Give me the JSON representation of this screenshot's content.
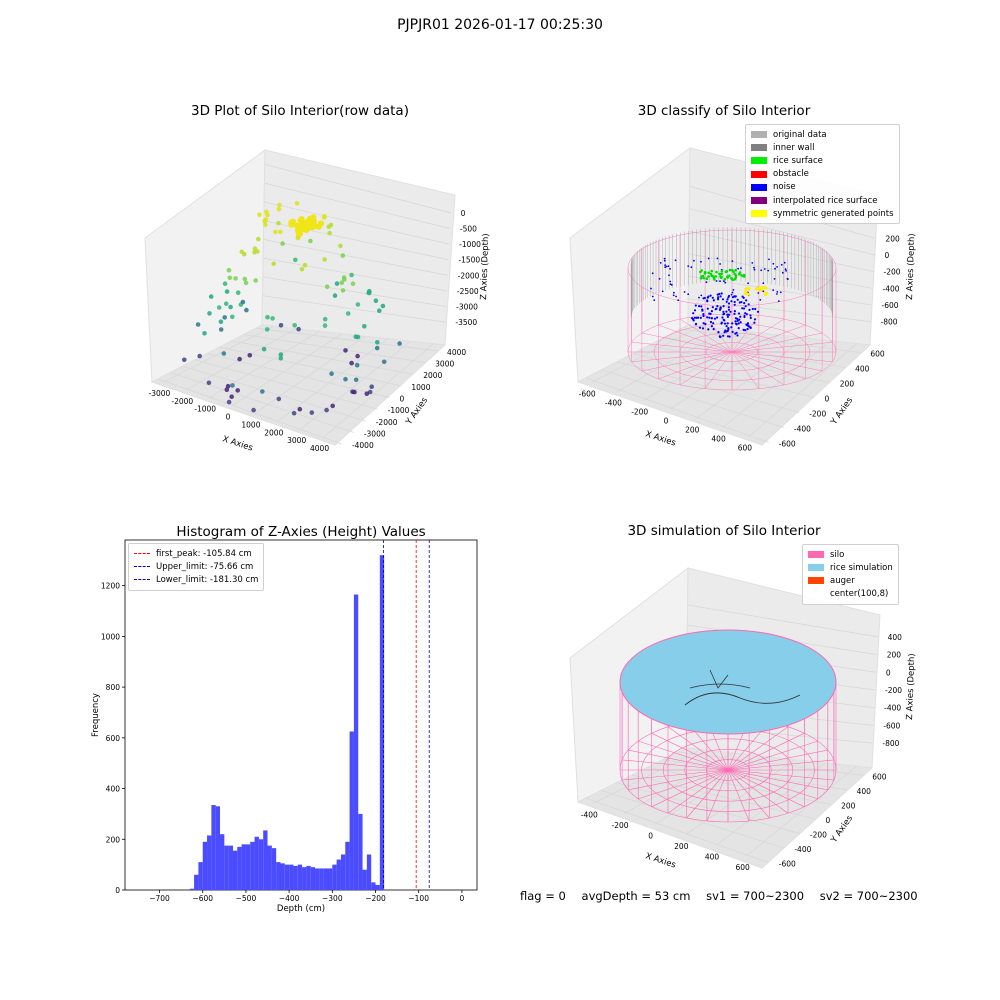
{
  "suptitle": "PJPJR01 2026-01-17 00:25:30",
  "panel1": {
    "title": "3D Plot of Silo Interior(row data)",
    "xlabel": "X Axies",
    "ylabel": "Y Axies",
    "zlabel": "Z Axies (Depth)",
    "xticks": [
      "-3000",
      "-2000",
      "-1000",
      "0",
      "1000",
      "2000",
      "3000",
      "4000"
    ],
    "yticks": [
      "-4000",
      "-3000",
      "-2000",
      "-1000",
      "0",
      "1000",
      "2000",
      "3000",
      "4000"
    ],
    "zticks": [
      "0",
      "-500",
      "-1000",
      "-1500",
      "-2000",
      "-2500",
      "-3000",
      "-3500"
    ]
  },
  "panel2": {
    "title": "3D classify of Silo Interior",
    "xlabel": "X Axies",
    "ylabel": "Y Axies",
    "zlabel": "Z Axies (Depth)",
    "xticks": [
      "-600",
      "-400",
      "-200",
      "0",
      "200",
      "400",
      "600"
    ],
    "yticks": [
      "-600",
      "-400",
      "-200",
      "0",
      "200",
      "400",
      "600"
    ],
    "zticks": [
      "200",
      "0",
      "-200",
      "-400",
      "-600",
      "-800"
    ],
    "legend": [
      {
        "label": "original data",
        "color": "#b0b0b0"
      },
      {
        "label": "inner wall",
        "color": "#808080"
      },
      {
        "label": "rice surface",
        "color": "#00ee00"
      },
      {
        "label": "obstacle",
        "color": "#ff0000"
      },
      {
        "label": "noise",
        "color": "#0000ff"
      },
      {
        "label": "interpolated rice surface",
        "color": "#800080"
      },
      {
        "label": "symmetric generated points",
        "color": "#ffff00"
      }
    ]
  },
  "panel4": {
    "title": "3D simulation of Silo Interior",
    "xlabel": "X Axies",
    "ylabel": "Y Axies",
    "zlabel": "Z Axies (Depth)",
    "xticks": [
      "-400",
      "-200",
      "0",
      "200",
      "400",
      "600"
    ],
    "yticks": [
      "-600",
      "-400",
      "-200",
      "0",
      "200",
      "400",
      "600"
    ],
    "zticks": [
      "400",
      "200",
      "0",
      "-200",
      "-400",
      "-600",
      "-800"
    ],
    "legend": [
      {
        "label": "silo",
        "color": "#ff69b4"
      },
      {
        "label": "rice simulation",
        "color": "#87ceeb"
      },
      {
        "label": "auger",
        "color": "#ff4500"
      },
      {
        "label": "center(100,8)",
        "color": "#ffffff"
      }
    ]
  },
  "status": {
    "flag": "flag = 0",
    "avg_depth": "avgDepth = 53 cm",
    "sv1": "sv1 = 700~2300",
    "sv2": "sv2 = 700~2300"
  },
  "chart_data": [
    {
      "type": "bar",
      "title": "Histogram of Z-Axies (Height) Values",
      "xlabel": "Depth (cm)",
      "ylabel": "Frequency",
      "xlim": [
        -780,
        35
      ],
      "ylim": [
        0,
        1380
      ],
      "bin_width": 10,
      "bin_start": -630,
      "values": [
        5,
        60,
        110,
        190,
        215,
        335,
        330,
        220,
        175,
        175,
        155,
        170,
        180,
        180,
        190,
        210,
        200,
        235,
        175,
        165,
        110,
        105,
        100,
        100,
        95,
        100,
        90,
        95,
        90,
        85,
        85,
        85,
        85,
        100,
        120,
        140,
        190,
        625,
        1165,
        300,
        80,
        140,
        30,
        20,
        1320
      ],
      "xticks": [
        -700,
        -600,
        -500,
        -400,
        -300,
        -200,
        -100,
        0
      ],
      "yticks": [
        0,
        200,
        400,
        600,
        800,
        1000,
        1200
      ],
      "bar_color": "#4b4bff",
      "vlines": [
        {
          "label": "first_peak: -105.84 cm",
          "x": -105.84,
          "color": "#ff0000"
        },
        {
          "label": "Upper_limit: -75.66 cm",
          "x": -75.66,
          "color": "#0000bb"
        },
        {
          "label": "Lower_limit: -181.30 cm",
          "x": -181.3,
          "color": "#0000bb"
        }
      ],
      "legend_position": "top-left"
    }
  ]
}
